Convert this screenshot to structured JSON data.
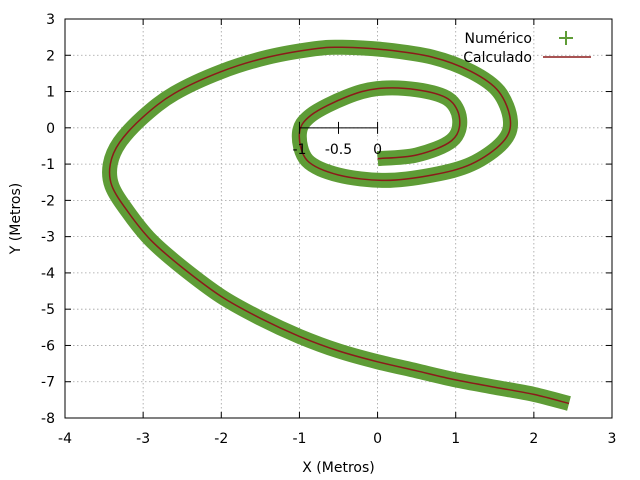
{
  "chart_data": {
    "type": "line",
    "title": "",
    "xlabel": "X (Metros)",
    "ylabel": "Y (Metros)",
    "xlim": [
      -4,
      3
    ],
    "ylim": [
      -8,
      3
    ],
    "xticks": [
      -4,
      -3,
      -2,
      -1,
      0,
      1,
      2,
      3
    ],
    "yticks": [
      -8,
      -7,
      -6,
      -5,
      -4,
      -3,
      -2,
      -1,
      0,
      1,
      2,
      3
    ],
    "grid": true,
    "legend_position": "top-right",
    "series": [
      {
        "name": "Numérico",
        "style": "points-plus",
        "color": "#5e9c36",
        "x": [
          2.45,
          2.0,
          1.5,
          1.0,
          0.5,
          0.0,
          -0.5,
          -1.0,
          -1.5,
          -2.0,
          -2.5,
          -2.9,
          -3.2,
          -3.4,
          -3.42,
          -3.3,
          -3.0,
          -2.6,
          -2.0,
          -1.4,
          -0.8,
          -0.45,
          0.1,
          0.7,
          1.2,
          1.55,
          1.7,
          1.6,
          1.2,
          0.7,
          0.1,
          -0.5,
          -0.9,
          -1.0,
          -0.85,
          -0.4,
          0.0,
          0.5,
          0.9,
          1.05,
          0.95,
          0.5,
          0.0
        ],
        "y": [
          -7.6,
          -7.35,
          -7.15,
          -6.95,
          -6.7,
          -6.45,
          -6.15,
          -5.75,
          -5.25,
          -4.65,
          -3.85,
          -3.1,
          -2.3,
          -1.6,
          -1.0,
          -0.4,
          0.3,
          0.95,
          1.55,
          1.95,
          2.18,
          2.22,
          2.15,
          1.95,
          1.55,
          1.0,
          0.2,
          -0.4,
          -1.0,
          -1.3,
          -1.45,
          -1.3,
          -0.9,
          -0.15,
          0.35,
          0.85,
          1.08,
          1.05,
          0.8,
          0.25,
          -0.35,
          -0.75,
          -0.85
        ]
      },
      {
        "name": "Calculado",
        "style": "line",
        "color": "#8b1a1a",
        "x": [
          2.45,
          2.0,
          1.5,
          1.0,
          0.5,
          0.0,
          -0.5,
          -1.0,
          -1.5,
          -2.0,
          -2.5,
          -2.9,
          -3.2,
          -3.4,
          -3.42,
          -3.3,
          -3.0,
          -2.6,
          -2.0,
          -1.4,
          -0.8,
          -0.45,
          0.1,
          0.7,
          1.2,
          1.55,
          1.7,
          1.6,
          1.2,
          0.7,
          0.1,
          -0.5,
          -0.9,
          -1.0,
          -0.85,
          -0.4,
          0.0,
          0.5,
          0.9,
          1.05,
          0.95,
          0.5,
          0.0
        ],
        "y": [
          -7.6,
          -7.35,
          -7.15,
          -6.95,
          -6.7,
          -6.45,
          -6.15,
          -5.75,
          -5.25,
          -4.65,
          -3.85,
          -3.1,
          -2.3,
          -1.6,
          -1.0,
          -0.4,
          0.3,
          0.95,
          1.55,
          1.95,
          2.18,
          2.22,
          2.15,
          1.95,
          1.55,
          1.0,
          0.2,
          -0.4,
          -1.0,
          -1.3,
          -1.45,
          -1.3,
          -0.9,
          -0.15,
          0.35,
          0.85,
          1.08,
          1.05,
          0.8,
          0.25,
          -0.35,
          -0.75,
          -0.85
        ]
      }
    ],
    "inset_axis": {
      "tick_values": [
        -1,
        -0.5,
        0
      ],
      "tick_labels": [
        "-1",
        "-0.5",
        "0"
      ],
      "y": 0
    }
  }
}
